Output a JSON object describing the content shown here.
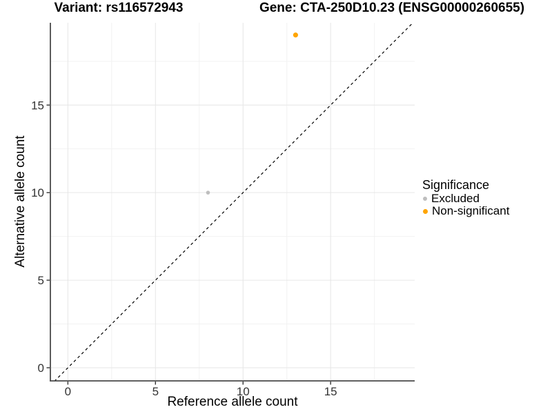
{
  "titles": {
    "variant": "Variant: rs116572943",
    "gene": "Gene: CTA-250D10.23 (ENSG00000260655)"
  },
  "chart_data": {
    "type": "scatter",
    "xlabel": "Reference allele count",
    "ylabel": "Alternative allele count",
    "xlim": [
      -1.0,
      19.8
    ],
    "ylim": [
      -0.75,
      19.7
    ],
    "x_ticks": [
      0,
      5,
      10,
      15
    ],
    "y_ticks": [
      0,
      5,
      10,
      15
    ],
    "x_minor_ticks": [
      2.5,
      7.5,
      12.5,
      17.5
    ],
    "y_minor_ticks": [
      2.5,
      7.5,
      12.5,
      17.5
    ],
    "grid": true,
    "legend_position": "right",
    "identity_line": {
      "style": "dashed",
      "color": "#000000",
      "from": [
        -1,
        -1
      ],
      "to": [
        20,
        20
      ]
    },
    "series": [
      {
        "name": "Excluded",
        "color": "#BEBEBE",
        "diameter": 5.6,
        "points": [
          {
            "x": 8,
            "y": 10
          }
        ]
      },
      {
        "name": "Non-significant",
        "color": "#FFA500",
        "diameter": 7.2,
        "points": [
          {
            "x": 13,
            "y": 19
          }
        ]
      }
    ]
  },
  "legend": {
    "title": "Significance",
    "items": [
      {
        "label": "Excluded",
        "color": "#BEBEBE",
        "diameter": 6
      },
      {
        "label": "Non-significant",
        "color": "#FFA500",
        "diameter": 7
      }
    ]
  },
  "style": {
    "background": "#FFFFFF",
    "grid_major_color": "#E6E6E6",
    "grid_minor_color": "#F2F2F2",
    "axis_line_color": "#4A4A4A",
    "tick_mark_color": "#333333",
    "tick_label_color": "#333333",
    "tick_label_size": 17
  }
}
